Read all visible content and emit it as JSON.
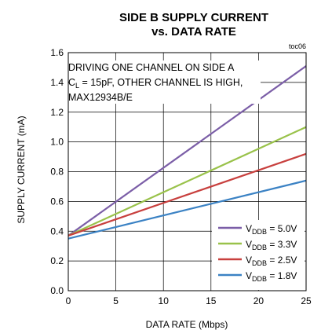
{
  "chart_data": {
    "type": "line",
    "title": "SIDE B SUPPLY CURRENT",
    "subtitle": "vs. DATA RATE",
    "tag": "toc06",
    "xlabel": "DATA RATE (Mbps)",
    "ylabel": "SUPPLY CURRENT (mA)",
    "xlim": [
      0,
      25
    ],
    "ylim": [
      0,
      1.6
    ],
    "xticks": [
      "0",
      "5",
      "10",
      "15",
      "20",
      "25"
    ],
    "yticks": [
      "0.0",
      "0.2",
      "0.4",
      "0.6",
      "0.8",
      "1.0",
      "1.2",
      "1.4",
      "1.6"
    ],
    "grid": true,
    "annotation": {
      "line1": "DRIVING ONE CHANNEL ON SIDE A",
      "line2_prefix": "C",
      "line2_sub": "L",
      "line2_rest": " = 15pF, OTHER CHANNEL IS HIGH,",
      "line3": "MAX12934B/E"
    },
    "legend_position": "bottom-right",
    "series": [
      {
        "name_main": "V",
        "name_sub": "DDB",
        "name_rest": " = 5.0V",
        "color": "#7b5ea7",
        "x": [
          0,
          25
        ],
        "y": [
          0.37,
          1.51
        ]
      },
      {
        "name_main": "V",
        "name_sub": "DDB",
        "name_rest": " = 3.3V",
        "color": "#99c24a",
        "x": [
          0,
          25
        ],
        "y": [
          0.37,
          1.1
        ]
      },
      {
        "name_main": "V",
        "name_sub": "DDB",
        "name_rest": " = 2.5V",
        "color": "#c8403e",
        "x": [
          0,
          25
        ],
        "y": [
          0.37,
          0.92
        ]
      },
      {
        "name_main": "V",
        "name_sub": "DDB",
        "name_rest": " = 1.8V",
        "color": "#3b82c4",
        "x": [
          0,
          25
        ],
        "y": [
          0.35,
          0.74
        ]
      }
    ]
  }
}
